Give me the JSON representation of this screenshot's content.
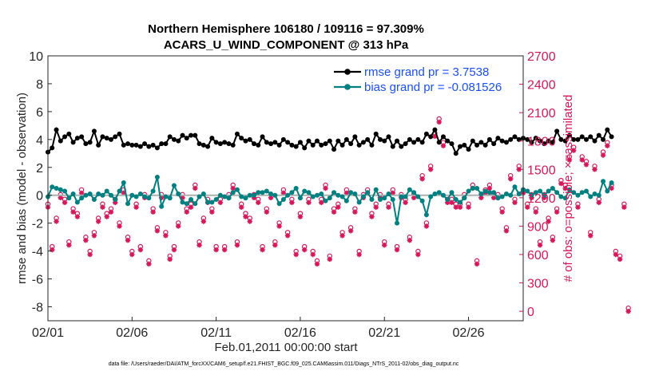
{
  "chart_data": {
    "type": "line",
    "title_line1": "Northern Hemisphere 106180 / 109116 = 97.309%",
    "title_line2": "ACARS_U_WIND_COMPONENT @ 313 hPa",
    "xlabel": "Feb.01,2011 00:00:00 start",
    "ylabel": "rmse and bias (model - observation)",
    "ylabel_right": "# of obs: o=possible; ×=assimilated",
    "x_tick_labels": [
      "02/01",
      "02/06",
      "02/11",
      "02/16",
      "02/21",
      "02/26"
    ],
    "x_tick_days": [
      1,
      6,
      11,
      16,
      21,
      26
    ],
    "xlim": [
      1,
      29.25
    ],
    "ylim": [
      -9,
      10
    ],
    "y_ticks": [
      10,
      8,
      6,
      4,
      2,
      0,
      -2,
      -4,
      -6,
      -8
    ],
    "y_tick_labels": [
      "10",
      "8",
      "6",
      "4",
      "2",
      "0",
      "-2",
      "-4",
      "-6",
      "-8"
    ],
    "ylim_right": [
      -100,
      2700
    ],
    "y_ticks_right": [
      2700,
      2400,
      2100,
      1800,
      1500,
      1200,
      900,
      600,
      300,
      0
    ],
    "y_tick_labels_right": [
      "2700",
      "2400",
      "2100",
      "1800",
      "1500",
      "1200",
      "900",
      "600",
      "300",
      "0"
    ],
    "x_start_day": 1,
    "step_days": 0.25,
    "series": [
      {
        "name": "rmse grand pr = 3.7538",
        "color": "#000000",
        "values": [
          3.1,
          3.4,
          4.7,
          3.9,
          4.2,
          4.4,
          3.8,
          4.1,
          4.2,
          3.7,
          3.8,
          4.6,
          3.6,
          4.2,
          4.1,
          4.0,
          4.2,
          4.4,
          3.6,
          3.7,
          3.6,
          3.6,
          3.5,
          3.7,
          3.5,
          3.6,
          3.4,
          3.7,
          3.7,
          4.2,
          4.0,
          3.9,
          4.3,
          4.1,
          4.3,
          4.3,
          3.7,
          3.6,
          3.5,
          4.1,
          3.8,
          3.7,
          3.8,
          3.7,
          3.6,
          4.4,
          4.1,
          3.9,
          4.0,
          3.7,
          3.6,
          4.2,
          3.8,
          3.7,
          3.8,
          3.6,
          4.0,
          3.8,
          3.6,
          3.5,
          3.8,
          3.4,
          3.9,
          3.6,
          3.9,
          3.6,
          3.7,
          3.9,
          3.3,
          3.9,
          3.6,
          4.0,
          3.7,
          4.2,
          3.6,
          3.8,
          4.0,
          3.6,
          4.4,
          4.0,
          3.9,
          4.2,
          3.5,
          3.9,
          3.5,
          3.7,
          4.0,
          3.8,
          4.0,
          3.8,
          4.4,
          4.2,
          4.7,
          3.8,
          4.2,
          3.9,
          3.7,
          3.0,
          3.5,
          3.6,
          3.3,
          3.9,
          3.6,
          3.8,
          3.6,
          4.0,
          3.7,
          4.1,
          3.9,
          3.8,
          4.0,
          4.2,
          4.0,
          4.1,
          4.0,
          3.8,
          4.1,
          3.9,
          3.7,
          3.9,
          3.8,
          4.6,
          4.0,
          3.9,
          4.3,
          4.0,
          4.0,
          4.2,
          4.0,
          4.2,
          3.9,
          4.3,
          4.0,
          4.7,
          4.2
        ]
      },
      {
        "name": "bias grand pr = -0.081526",
        "color": "#008080",
        "values": [
          -0.1,
          0.6,
          0.5,
          0.4,
          0.3,
          -0.2,
          0.1,
          -0.5,
          -0.2,
          0.0,
          0.1,
          -0.3,
          0.1,
          0.0,
          0.3,
          0.0,
          -0.3,
          0.3,
          0.9,
          -0.6,
          0.0,
          -0.1,
          0.1,
          -0.1,
          -0.2,
          0.3,
          1.3,
          -0.8,
          -0.1,
          -0.2,
          0.7,
          0.1,
          -0.5,
          -0.6,
          -0.3,
          -0.6,
          -0.1,
          0.1,
          -0.5,
          -0.5,
          -0.3,
          0.0,
          -0.1,
          -0.2,
          0.2,
          0.4,
          -0.1,
          -0.2,
          0.0,
          0.0,
          0.2,
          0.2,
          0.3,
          0.1,
          0.0,
          -0.6,
          -0.3,
          0.0,
          0.2,
          0.5,
          -0.2,
          0.3,
          0.2,
          -0.1,
          0.0,
          0.1,
          -0.4,
          -0.2,
          0.2,
          0.0,
          -0.1,
          -0.4,
          0.2,
          0.1,
          -0.5,
          -0.1,
          0.2,
          -0.3,
          0.4,
          -0.3,
          -0.2,
          0.1,
          -0.3,
          -2.0,
          -0.1,
          -0.1,
          0.4,
          0.2,
          -0.1,
          -0.4,
          -1.4,
          -0.1,
          0.1,
          0.2,
          0.0,
          -0.3,
          0.2,
          -0.3,
          -0.5,
          -0.2,
          0.3,
          0.5,
          0.5,
          0.1,
          0.3,
          0.2,
          0.2,
          -0.2,
          -0.1,
          0.1,
          0.0,
          0.6,
          0.1,
          0.4,
          0.3,
          0.0,
          0.2,
          0.3,
          0.0,
          0.3,
          0.5,
          0.2,
          -0.1,
          -0.2,
          0.4,
          0.2,
          0.0,
          0.2,
          0.3,
          -0.1,
          0.1,
          0.0,
          1.0,
          0.3,
          0.9
        ]
      }
    ],
    "obs_series": {
      "name": "# of obs",
      "color": "#d6175a",
      "values": [
        1100,
        650,
        950,
        1200,
        1150,
        700,
        1050,
        1000,
        1250,
        750,
        600,
        800,
        950,
        1100,
        1000,
        1050,
        1150,
        900,
        1250,
        750,
        600,
        1100,
        650,
        1200,
        500,
        1050,
        850,
        1200,
        800,
        550,
        650,
        900,
        1200,
        1050,
        1100,
        1300,
        700,
        950,
        1150,
        1050,
        650,
        1150,
        650,
        1200,
        1300,
        700,
        1100,
        1000,
        950,
        1200,
        1150,
        650,
        1050,
        1200,
        700,
        900,
        1250,
        800,
        1150,
        600,
        1000,
        650,
        1150,
        600,
        500,
        1150,
        1300,
        550,
        1050,
        1100,
        800,
        1250,
        850,
        1050,
        600,
        1200,
        1250,
        1000,
        1100,
        1200,
        700,
        1100,
        1250,
        650,
        1200,
        1150,
        750,
        1200,
        600,
        1400,
        900,
        1500,
        1850,
        2000,
        1750,
        1150,
        1150,
        1100,
        1100,
        1200,
        1100,
        1300,
        500,
        1200,
        1250,
        1300,
        1200,
        1200,
        1050,
        850,
        1400,
        1150,
        1500,
        1250,
        1100,
        1200,
        1050,
        700,
        1200,
        950,
        750,
        1050,
        1350,
        1300,
        1600,
        1700,
        1100,
        1600,
        1550,
        800,
        1500,
        1150,
        1650,
        1750,
        1300,
        600,
        550,
        1100,
        0
      ]
    },
    "legend": [
      {
        "label": "rmse grand pr = 3.7538",
        "color": "#000000"
      },
      {
        "label": "bias grand pr = -0.081526",
        "color": "#008080"
      }
    ],
    "footnote": "data file: /Users/raeder/DAI/ATM_forcXX/CAM6_setup/f.e21.FHIST_BGC.f09_025.CAM6assim.011/Diags_NTrS_2011-02/obs_diag_output.nc"
  }
}
